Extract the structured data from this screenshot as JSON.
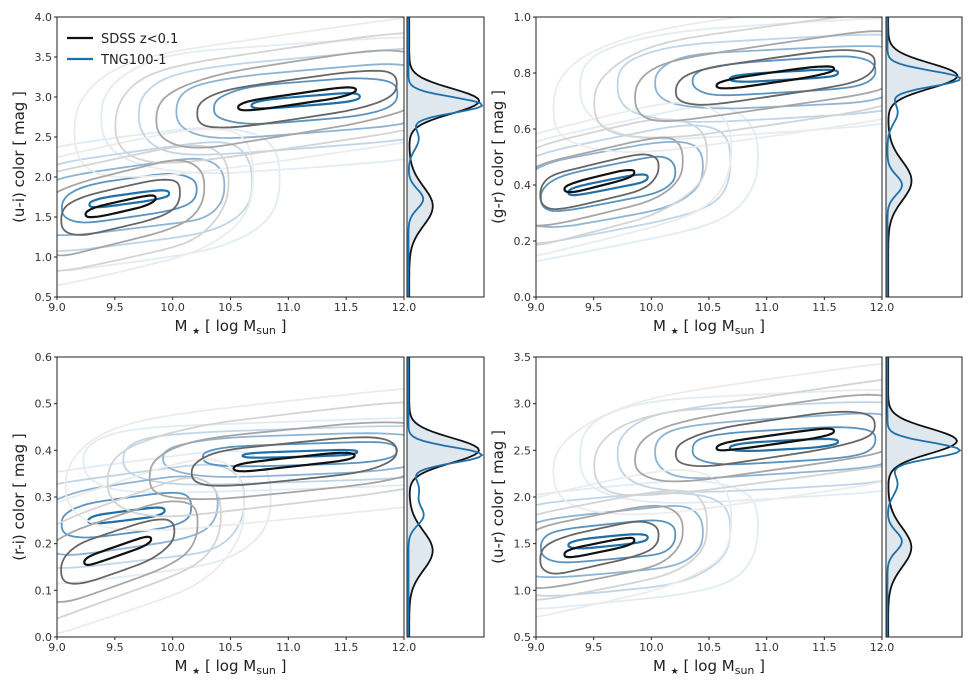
{
  "chart_data": [
    {
      "type": "contour",
      "panel": "top-left",
      "ylabel": "(u-i) color [ mag ]",
      "xlabel_main": "M",
      "xlabel_star": "★",
      "xlabel_bracket": "[ log M",
      "xlabel_sub": "sun",
      "xlabel_close": "]",
      "xlim": [
        9.0,
        12.0
      ],
      "ylim": [
        0.5,
        4.0
      ],
      "xticks": [
        "9.0",
        "9.5",
        "10.0",
        "10.5",
        "11.0",
        "11.5",
        "12.0"
      ],
      "yticks": [
        "0.5",
        "1.0",
        "1.5",
        "2.0",
        "2.5",
        "3.0",
        "3.5",
        "4.0"
      ],
      "legend": [
        {
          "label": "SDSS z<0.1",
          "color": "#111111"
        },
        {
          "label": "TNG100-1",
          "color": "#1f6fa8"
        }
      ],
      "sdss": {
        "blue": {
          "x": [
            9.0,
            10.1
          ],
          "y": [
            1.45,
            1.82
          ],
          "h": 0.13
        },
        "red": {
          "x": [
            10.15,
            12.0
          ],
          "y": [
            2.78,
            3.18
          ],
          "h": 0.13
        }
      },
      "tng": {
        "blue": {
          "x": [
            9.0,
            10.25
          ],
          "y": [
            1.6,
            1.85
          ],
          "h": 0.12
        },
        "red": {
          "x": [
            10.3,
            12.0
          ],
          "y": [
            2.85,
            3.05
          ],
          "h": 0.12
        }
      },
      "hist_sdss_peak": 2.95,
      "hist_tng_peak": 2.9
    },
    {
      "type": "contour",
      "panel": "top-right",
      "ylabel": "(g-r) color [ mag ]",
      "xlabel_main": "M",
      "xlabel_star": "★",
      "xlabel_bracket": "[ log M",
      "xlabel_sub": "sun",
      "xlabel_close": "]",
      "xlim": [
        9.0,
        12.0
      ],
      "ylim": [
        0.0,
        1.0
      ],
      "xticks": [
        "9.0",
        "9.5",
        "10.0",
        "10.5",
        "11.0",
        "11.5",
        "12.0"
      ],
      "yticks": [
        "0.0",
        "0.2",
        "0.4",
        "0.6",
        "0.8",
        "1.0"
      ],
      "sdss": {
        "blue": {
          "x": [
            9.0,
            10.1
          ],
          "y": [
            0.36,
            0.47
          ],
          "h": 0.035
        },
        "red": {
          "x": [
            10.15,
            12.0
          ],
          "y": [
            0.73,
            0.84
          ],
          "h": 0.035
        }
      },
      "tng": {
        "blue": {
          "x": [
            9.0,
            10.25
          ],
          "y": [
            0.35,
            0.45
          ],
          "h": 0.035
        },
        "red": {
          "x": [
            10.3,
            12.0
          ],
          "y": [
            0.77,
            0.81
          ],
          "h": 0.03
        }
      },
      "hist_sdss_peak": 0.79,
      "hist_tng_peak": 0.78
    },
    {
      "type": "contour",
      "panel": "bottom-left",
      "ylabel": "(r-i) color [ mag ]",
      "xlabel_main": "M",
      "xlabel_star": "★",
      "xlabel_bracket": "[ log M",
      "xlabel_sub": "sun",
      "xlabel_close": "]",
      "xlim": [
        9.0,
        12.0
      ],
      "ylim": [
        0.0,
        0.6
      ],
      "xticks": [
        "9.0",
        "9.5",
        "10.0",
        "10.5",
        "11.0",
        "11.5",
        "12.0"
      ],
      "yticks": [
        "0.0",
        "0.1",
        "0.2",
        "0.3",
        "0.4",
        "0.5",
        "0.6"
      ],
      "sdss": {
        "blue": {
          "x": [
            9.0,
            10.05
          ],
          "y": [
            0.14,
            0.23
          ],
          "h": 0.022
        },
        "red": {
          "x": [
            10.1,
            12.0
          ],
          "y": [
            0.35,
            0.4
          ],
          "h": 0.02
        }
      },
      "tng": {
        "blue": {
          "x": [
            9.0,
            10.2
          ],
          "y": [
            0.24,
            0.28
          ],
          "h": 0.02
        },
        "red": {
          "x": [
            10.2,
            12.0
          ],
          "y": [
            0.385,
            0.4
          ],
          "h": 0.012
        }
      },
      "hist_sdss_peak": 0.4,
      "hist_tng_peak": 0.39
    },
    {
      "type": "contour",
      "panel": "bottom-right",
      "ylabel": "(u-r) color [ mag ]",
      "xlabel_main": "M",
      "xlabel_star": "★",
      "xlabel_bracket": "[ log M",
      "xlabel_sub": "sun",
      "xlabel_close": "]",
      "xlim": [
        9.0,
        12.0
      ],
      "ylim": [
        0.5,
        3.5
      ],
      "xticks": [
        "9.0",
        "9.5",
        "10.0",
        "10.5",
        "11.0",
        "11.5",
        "12.0"
      ],
      "yticks": [
        "0.5",
        "1.0",
        "1.5",
        "2.0",
        "2.5",
        "3.0",
        "3.5"
      ],
      "sdss": {
        "blue": {
          "x": [
            9.0,
            10.1
          ],
          "y": [
            1.32,
            1.6
          ],
          "h": 0.1
        },
        "red": {
          "x": [
            10.15,
            12.0
          ],
          "y": [
            2.45,
            2.78
          ],
          "h": 0.1
        }
      },
      "tng": {
        "blue": {
          "x": [
            9.0,
            10.25
          ],
          "y": [
            1.45,
            1.6
          ],
          "h": 0.1
        },
        "red": {
          "x": [
            10.3,
            12.0
          ],
          "y": [
            2.5,
            2.62
          ],
          "h": 0.09
        }
      },
      "hist_sdss_peak": 2.6,
      "hist_tng_peak": 2.5
    }
  ],
  "colors": {
    "sdss_levels": [
      "#111111",
      "#666666",
      "#a6a6a6",
      "#d4d4d4",
      "#ececec"
    ],
    "tng_levels": [
      "#1f6fa8",
      "#5b93c0",
      "#8fb4d3",
      "#c0d6e8",
      "#e2ecf5"
    ],
    "hist_fill": "#dfe7ef"
  }
}
